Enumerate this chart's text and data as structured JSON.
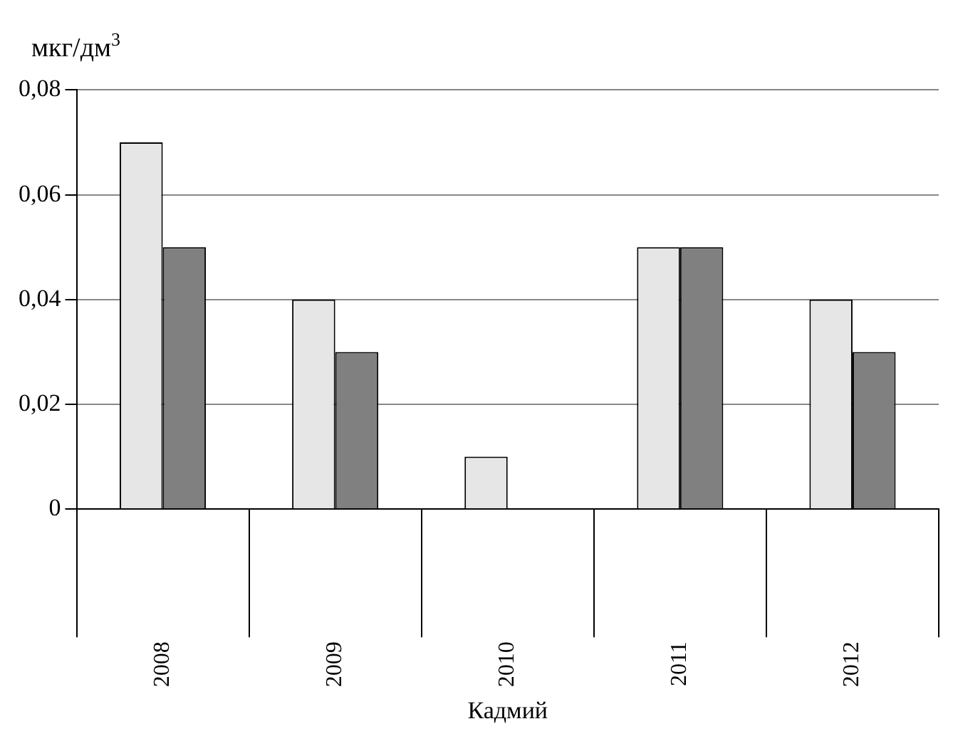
{
  "chart_data": {
    "type": "bar",
    "ylabel": "мкг/дм$^{3}$",
    "xlabel": "Кадмий",
    "categories": [
      "2008",
      "2009",
      "2010",
      "2011",
      "2012"
    ],
    "series": [
      {
        "color": "#e6e6e6",
        "values": [
          0.07,
          0.04,
          0.01,
          0.05,
          0.04
        ]
      },
      {
        "color": "#808080",
        "values": [
          0.05,
          0.03,
          0,
          0.05,
          0.03
        ]
      }
    ],
    "ylim": [
      0,
      0.08
    ],
    "yticks": [
      {
        "value": 0,
        "label": "0"
      },
      {
        "value": 0.02,
        "label": "0,02"
      },
      {
        "value": 0.04,
        "label": "0,04"
      },
      {
        "value": 0.06,
        "label": "0,06"
      },
      {
        "value": 0.08,
        "label": "0,08"
      }
    ],
    "grid": "y",
    "legend": false
  }
}
